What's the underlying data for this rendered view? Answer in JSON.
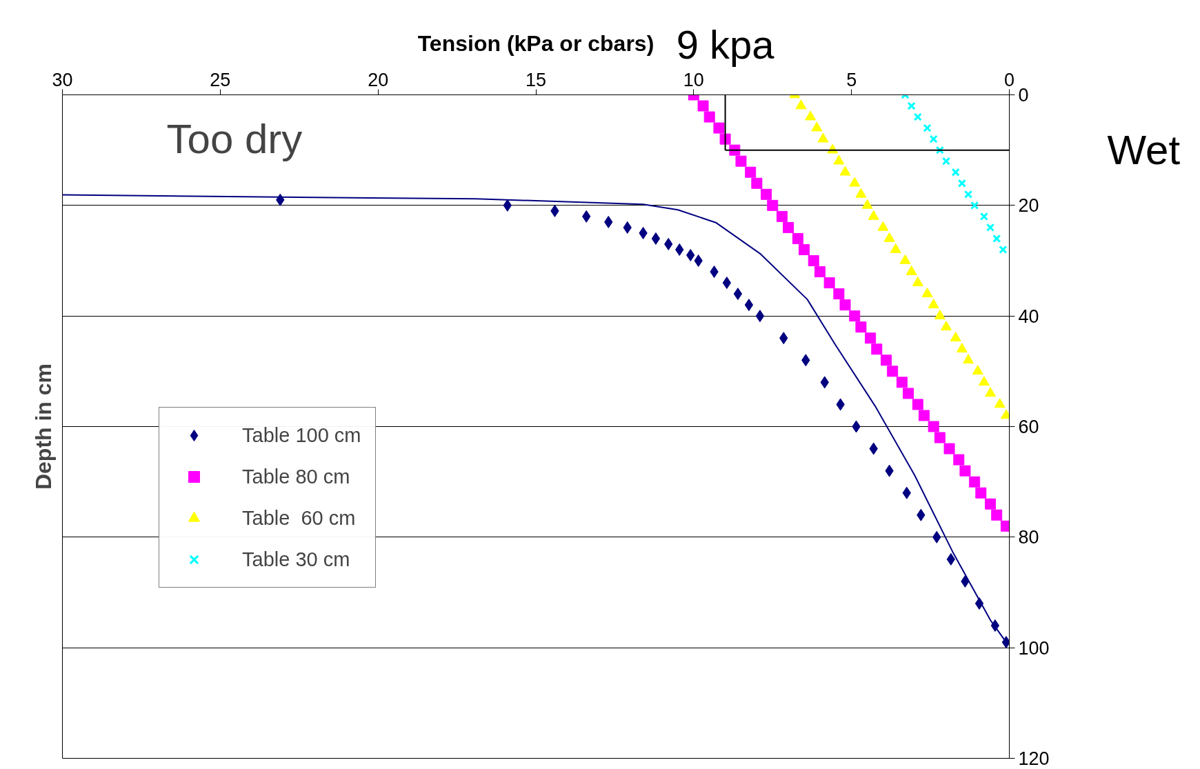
{
  "chart_data": {
    "type": "scatter",
    "xlabel": "Tension (kPa or cbars)",
    "ylabel": "Depth in cm",
    "xlim": [
      30,
      0
    ],
    "xticks": [
      30,
      25,
      20,
      15,
      10,
      5,
      0
    ],
    "ylim": [
      120,
      0
    ],
    "yticks": [
      0,
      20,
      40,
      60,
      80,
      100,
      120
    ],
    "grid": "y",
    "legend": "bottom left",
    "annotations": [
      "Too dry"
    ],
    "ref_lines": [
      {
        "axis": "x",
        "value": 9,
        "label": "9 kpa"
      },
      {
        "axis": "y",
        "value": 10,
        "label": "Wet"
      }
    ],
    "series": [
      {
        "name": "Table 100 cm",
        "type": "scatter",
        "marker": "diamond",
        "color": "#000080",
        "x": [
          23.1,
          15.9,
          14.4,
          13.4,
          12.7,
          12.1,
          11.6,
          11.2,
          10.8,
          10.45,
          10.1,
          9.85,
          9.35,
          8.95,
          8.6,
          8.25,
          7.9,
          7.15,
          6.45,
          5.85,
          5.35,
          4.85,
          4.3,
          3.8,
          3.25,
          2.8,
          2.3,
          1.85,
          1.4,
          0.95,
          0.45,
          0.1
        ],
        "values": [
          19,
          20,
          21,
          22,
          23,
          24,
          25,
          26,
          27,
          28,
          29,
          30,
          32,
          34,
          36,
          38,
          40,
          44,
          48,
          52,
          56,
          60,
          64,
          68,
          72,
          76,
          80,
          84,
          88,
          92,
          96,
          99
        ]
      },
      {
        "type": "line",
        "color": "#000080",
        "x": [
          30,
          23.1,
          16.9,
          11.6,
          10.5,
          9.3,
          7.9,
          6.4,
          5.5,
          4.25,
          3.0,
          1.8,
          0.6,
          0.1
        ],
        "values": [
          18.1,
          18.5,
          18.8,
          19.8,
          20.8,
          23.1,
          28.7,
          37,
          45.3,
          56.3,
          68.8,
          82.6,
          95,
          99
        ]
      },
      {
        "name": "Table 80 cm",
        "type": "scatter",
        "marker": "square",
        "color": "#ff00ff",
        "x": [
          10.0,
          9.7,
          9.5,
          9.2,
          9.0,
          8.7,
          8.5,
          8.2,
          8.0,
          7.7,
          7.5,
          7.2,
          7.0,
          6.7,
          6.5,
          6.2,
          6.0,
          5.7,
          5.4,
          5.2,
          4.9,
          4.7,
          4.4,
          4.2,
          3.9,
          3.7,
          3.4,
          3.2,
          2.9,
          2.7,
          2.4,
          2.2,
          1.9,
          1.6,
          1.4,
          1.1,
          0.9,
          0.6,
          0.4,
          0.1
        ],
        "values": [
          0,
          2,
          4,
          6,
          8,
          10,
          12,
          14,
          16,
          18,
          20,
          22,
          24,
          26,
          28,
          30,
          32,
          34,
          36,
          38,
          40,
          42,
          44,
          46,
          48,
          50,
          52,
          54,
          56,
          58,
          60,
          62,
          64,
          66,
          68,
          70,
          72,
          74,
          76,
          78
        ]
      },
      {
        "name": "Table  60 cm",
        "marker": "triangle",
        "color": "#ffff00",
        "x": [
          6.8,
          6.6,
          6.3,
          6.1,
          5.9,
          5.6,
          5.4,
          5.2,
          4.9,
          4.7,
          4.5,
          4.3,
          4.0,
          3.8,
          3.6,
          3.3,
          3.1,
          2.9,
          2.6,
          2.4,
          2.2,
          2.0,
          1.7,
          1.5,
          1.3,
          1.0,
          0.8,
          0.6,
          0.3,
          0.1
        ],
        "values": [
          0,
          2,
          4,
          6,
          8,
          10,
          12,
          14,
          16,
          18,
          20,
          22,
          24,
          26,
          28,
          30,
          32,
          34,
          36,
          38,
          40,
          42,
          44,
          46,
          48,
          50,
          52,
          54,
          56,
          58
        ]
      },
      {
        "name": "Table 30 cm",
        "marker": "cross",
        "color": "#00ffff",
        "x": [
          3.3,
          3.1,
          2.9,
          2.6,
          2.4,
          2.2,
          2.0,
          1.7,
          1.5,
          1.3,
          1.1,
          0.8,
          0.6,
          0.4,
          0.2
        ],
        "values": [
          0,
          2,
          4,
          6,
          8,
          10,
          12,
          14,
          16,
          18,
          20,
          22,
          24,
          26,
          28
        ]
      }
    ]
  }
}
